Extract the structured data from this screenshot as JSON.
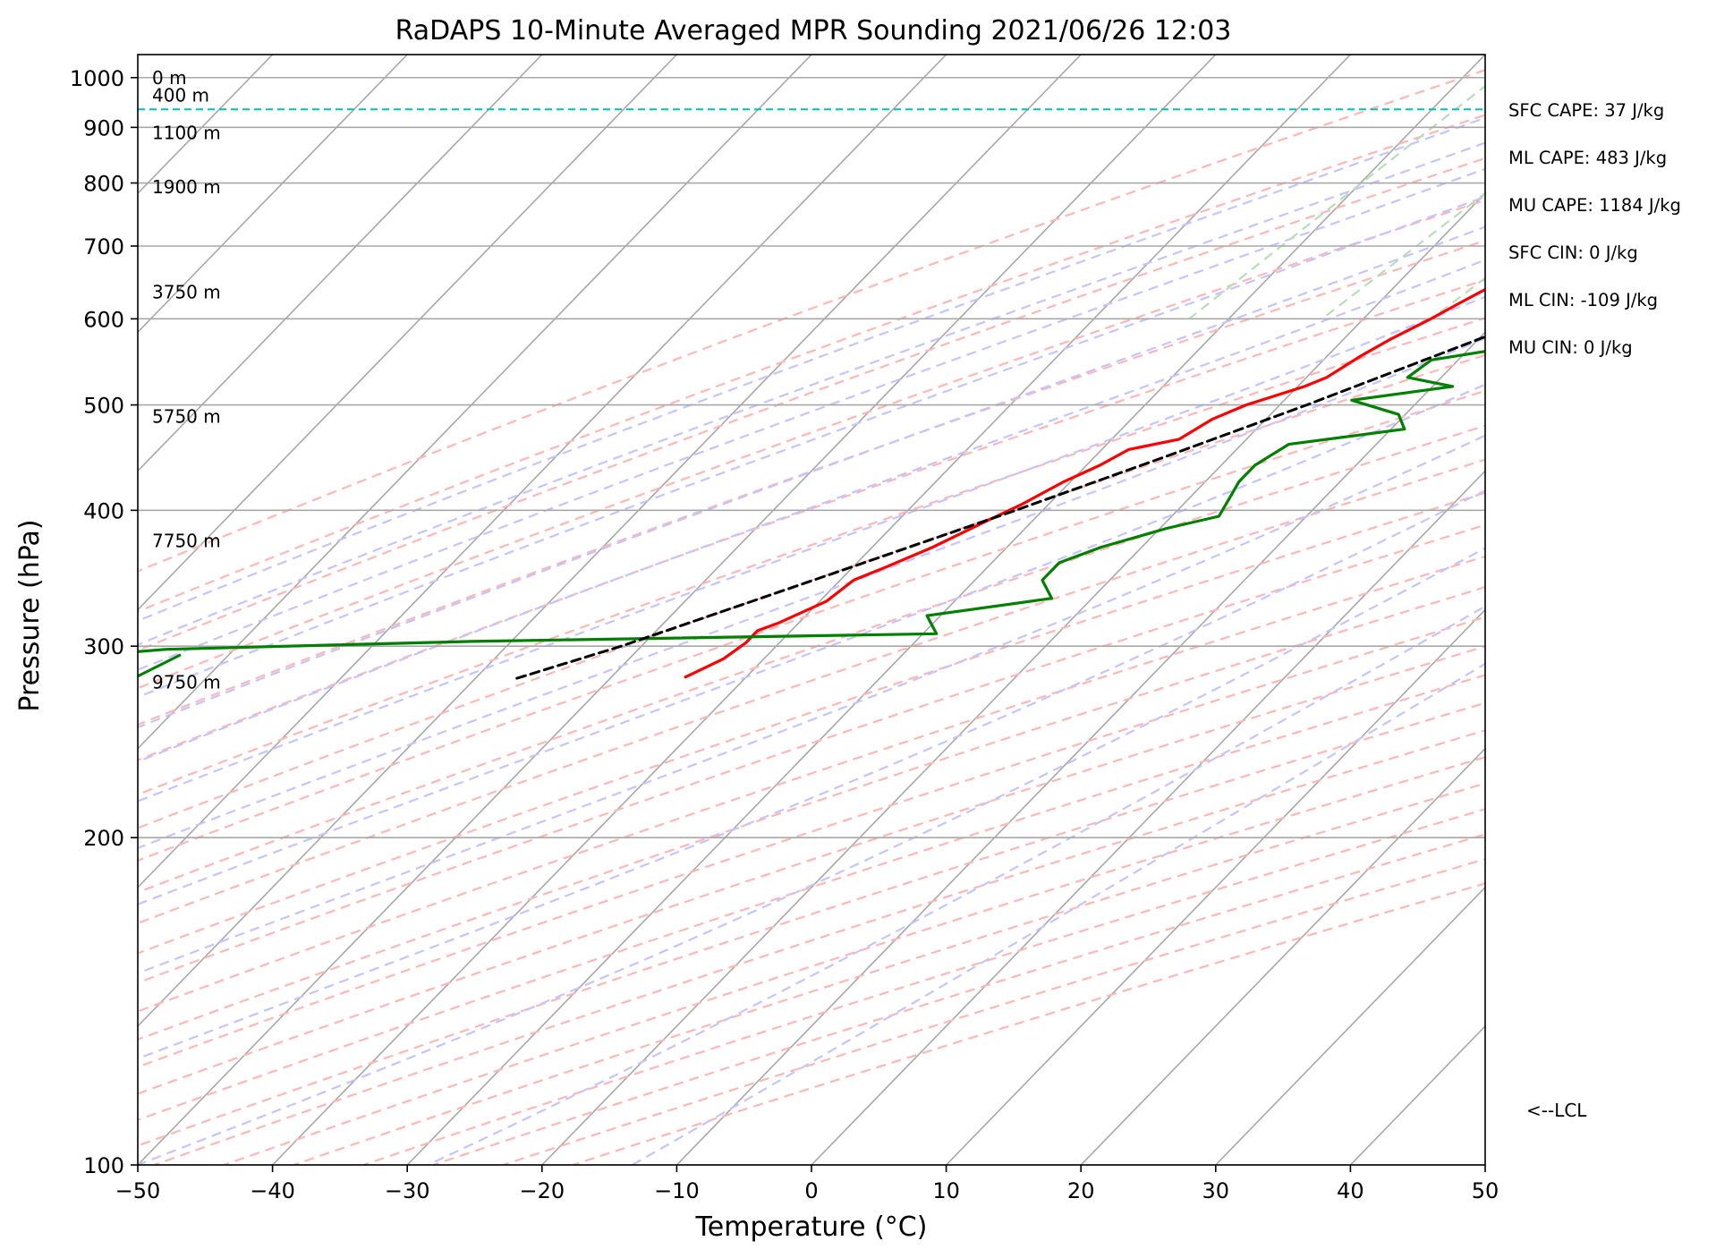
{
  "chart_data": {
    "type": "line",
    "subtype": "skew-T log-P sounding",
    "title": "RaDAPS 10-Minute Averaged MPR Sounding 2021/06/26 12:03",
    "xlabel": "Temperature (°C)",
    "ylabel": "Pressure (hPa)",
    "xlim": [
      -50,
      50
    ],
    "ylim": [
      1050,
      100
    ],
    "y_scale": "log",
    "grid": true,
    "x_ticks": [
      "−50",
      "−40",
      "−30",
      "−20",
      "−10",
      "0",
      "10",
      "20",
      "30",
      "40",
      "50"
    ],
    "x_tick_values": [
      -50,
      -40,
      -30,
      -20,
      -10,
      0,
      10,
      20,
      30,
      40,
      50
    ],
    "y_ticks": [
      "100",
      "200",
      "300",
      "400",
      "500",
      "600",
      "700",
      "800",
      "900",
      "1000"
    ],
    "y_tick_values": [
      100,
      200,
      300,
      400,
      500,
      600,
      700,
      800,
      900,
      1000
    ],
    "series": [
      {
        "name": "",
        "role": "temperature",
        "color": "#ff0000",
        "points": [
          [
            995,
            23.5
          ],
          [
            985,
            26.0
          ],
          [
            975,
            24.5
          ],
          [
            968,
            28.5
          ],
          [
            960,
            27.5
          ],
          [
            952,
            23.5
          ],
          [
            945,
            20.0
          ],
          [
            930,
            15.0
          ],
          [
            915,
            12.0
          ],
          [
            880,
            8.0
          ],
          [
            860,
            5.5
          ],
          [
            850,
            4.0
          ],
          [
            835,
            3.0
          ],
          [
            818,
            1.5
          ],
          [
            800,
            0.5
          ],
          [
            790,
            -1.0
          ],
          [
            776,
            -2.0
          ],
          [
            760,
            -3.5
          ],
          [
            740,
            -5.5
          ],
          [
            720,
            -7.0
          ],
          [
            705,
            -8.5
          ],
          [
            690,
            -9.5
          ],
          [
            670,
            -11.0
          ],
          [
            650,
            -12.5
          ],
          [
            620,
            -14.0
          ],
          [
            600,
            -15.0
          ],
          [
            575,
            -16.5
          ],
          [
            555,
            -17.5
          ],
          [
            530,
            -18.5
          ],
          [
            520,
            -19.5
          ],
          [
            500,
            -22.5
          ],
          [
            485,
            -24.0
          ],
          [
            465,
            -25.0
          ],
          [
            455,
            -28.0
          ],
          [
            440,
            -29.0
          ],
          [
            425,
            -30.5
          ],
          [
            405,
            -32.0
          ],
          [
            390,
            -33.5
          ],
          [
            370,
            -35.5
          ],
          [
            355,
            -37.5
          ],
          [
            345,
            -39.0
          ],
          [
            330,
            -39.5
          ],
          [
            315,
            -41.5
          ],
          [
            310,
            -42.5
          ],
          [
            302,
            -42.5
          ],
          [
            292,
            -43.0
          ],
          [
            281,
            -44.5
          ]
        ]
      },
      {
        "name": "",
        "role": "dewpoint",
        "color": "#008000",
        "points": [
          [
            995,
            19.0
          ],
          [
            987,
            10.0
          ],
          [
            978,
            10.5
          ],
          [
            970,
            19.0
          ],
          [
            960,
            20.0
          ],
          [
            945,
            18.0
          ],
          [
            938,
            13.0
          ],
          [
            930,
            5.0
          ],
          [
            920,
            -1.0
          ],
          [
            905,
            -4.0
          ],
          [
            895,
            -7.0
          ],
          [
            885,
            -7.0
          ],
          [
            875,
            -10.0
          ],
          [
            865,
            -8.0
          ],
          [
            855,
            -11.0
          ],
          [
            850,
            -11.5
          ],
          [
            835,
            -10.5
          ],
          [
            818,
            -9.0
          ],
          [
            800,
            -5.0
          ],
          [
            790,
            -5.0
          ],
          [
            760,
            -11.0
          ],
          [
            730,
            -12.0
          ],
          [
            710,
            -11.0
          ],
          [
            690,
            -5.0
          ],
          [
            670,
            -3.0
          ],
          [
            650,
            -6.0
          ],
          [
            630,
            -4.5
          ],
          [
            615,
            -4.5
          ],
          [
            600,
            -5.5
          ],
          [
            580,
            -7.0
          ],
          [
            565,
            -7.0
          ],
          [
            550,
            -12.0
          ],
          [
            530,
            -12.5
          ],
          [
            520,
            -8.5
          ],
          [
            505,
            -15.0
          ],
          [
            490,
            -10.5
          ],
          [
            475,
            -9.0
          ],
          [
            460,
            -16.5
          ],
          [
            440,
            -17.5
          ],
          [
            425,
            -17.5
          ],
          [
            410,
            -17.0
          ],
          [
            395,
            -16.5
          ],
          [
            385,
            -19.5
          ],
          [
            370,
            -23.0
          ],
          [
            358,
            -25.0
          ],
          [
            345,
            -25.0
          ],
          [
            332,
            -23.0
          ],
          [
            320,
            -31.0
          ],
          [
            308,
            -29.0
          ],
          [
            303,
            -63.0
          ],
          [
            298,
            -85.0
          ],
          [
            288,
            -99.0
          ],
          [
            280,
            -96.5
          ]
        ]
      },
      {
        "name": "",
        "role": "parcel profile",
        "color": "#000000",
        "dashed": true,
        "points": [
          [
            995,
            23.5
          ],
          [
            975,
            20.5
          ],
          [
            950,
            19.0
          ],
          [
            920,
            17.0
          ],
          [
            900,
            15.5
          ],
          [
            850,
            12.0
          ],
          [
            800,
            8.5
          ],
          [
            750,
            5.0
          ],
          [
            700,
            1.0
          ],
          [
            650,
            -3.0
          ],
          [
            600,
            -7.5
          ],
          [
            550,
            -12.5
          ],
          [
            500,
            -18.0
          ],
          [
            450,
            -24.5
          ],
          [
            400,
            -32.0
          ],
          [
            350,
            -41.0
          ],
          [
            300,
            -51.5
          ],
          [
            280,
            -57.0
          ]
        ]
      }
    ],
    "lcl_pressure": 935,
    "lcl_label": "<--LCL",
    "height_labels": [
      {
        "text": "9750 m",
        "p": 278
      },
      {
        "text": "7750 m",
        "p": 375
      },
      {
        "text": "5750 m",
        "p": 488
      },
      {
        "text": "3750 m",
        "p": 635
      },
      {
        "text": "1900 m",
        "p": 793
      },
      {
        "text": "1100 m",
        "p": 890
      },
      {
        "text": "400 m",
        "p": 963
      },
      {
        "text": "0 m",
        "p": 1000
      }
    ],
    "wind_barb": {
      "p": 288,
      "shaft_end_x_offset": 48
    },
    "background_lines": {
      "isotherm_color": "#a8a8a8",
      "dry_adiabat_color": "#ffb6b6",
      "moist_adiabat_color": "#c4c4ff",
      "mixing_ratio_color": "#b7deb7"
    },
    "annotations": [
      "SFC CAPE: 37 J/kg",
      "ML CAPE: 483 J/kg",
      "MU CAPE: 1184 J/kg",
      "SFC CIN: 0 J/kg",
      "ML CIN: -109 J/kg",
      "MU CIN: 0 J/kg"
    ]
  }
}
